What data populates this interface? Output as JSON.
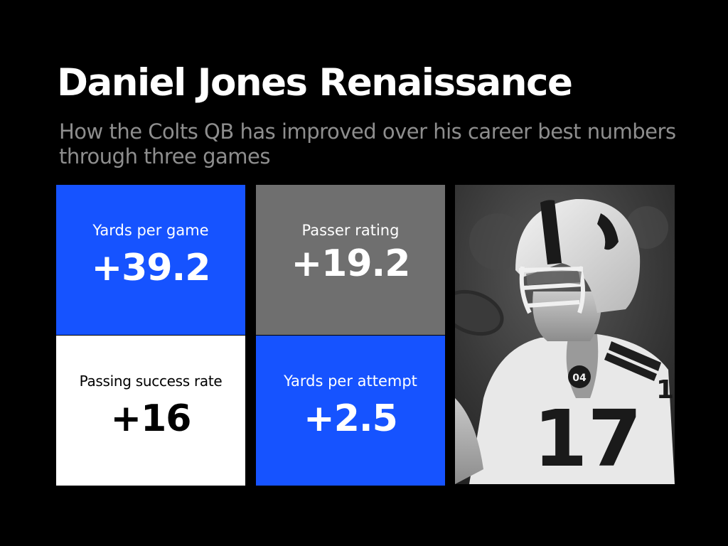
{
  "title": "Daniel Jones Renaissance",
  "subtitle": "How the Colts QB has improved over his career best numbers through three games",
  "stats": [
    {
      "label": "Yards per game",
      "value": "+39.2",
      "color": "#1653ff"
    },
    {
      "label": "Passer rating",
      "value": "+19.2",
      "color": "#6f6f6f"
    },
    {
      "label": "Passing success rate",
      "value": "+16",
      "color": "#ffffff"
    },
    {
      "label": "Yards per attempt",
      "value": "+2.5",
      "color": "#1653ff"
    }
  ],
  "photo": {
    "jersey_number": "17",
    "patch_text": "04"
  },
  "colors": {
    "background": "#000000",
    "accent_blue": "#1653ff",
    "gray": "#6f6f6f",
    "subtitle": "#8e8e8e"
  }
}
